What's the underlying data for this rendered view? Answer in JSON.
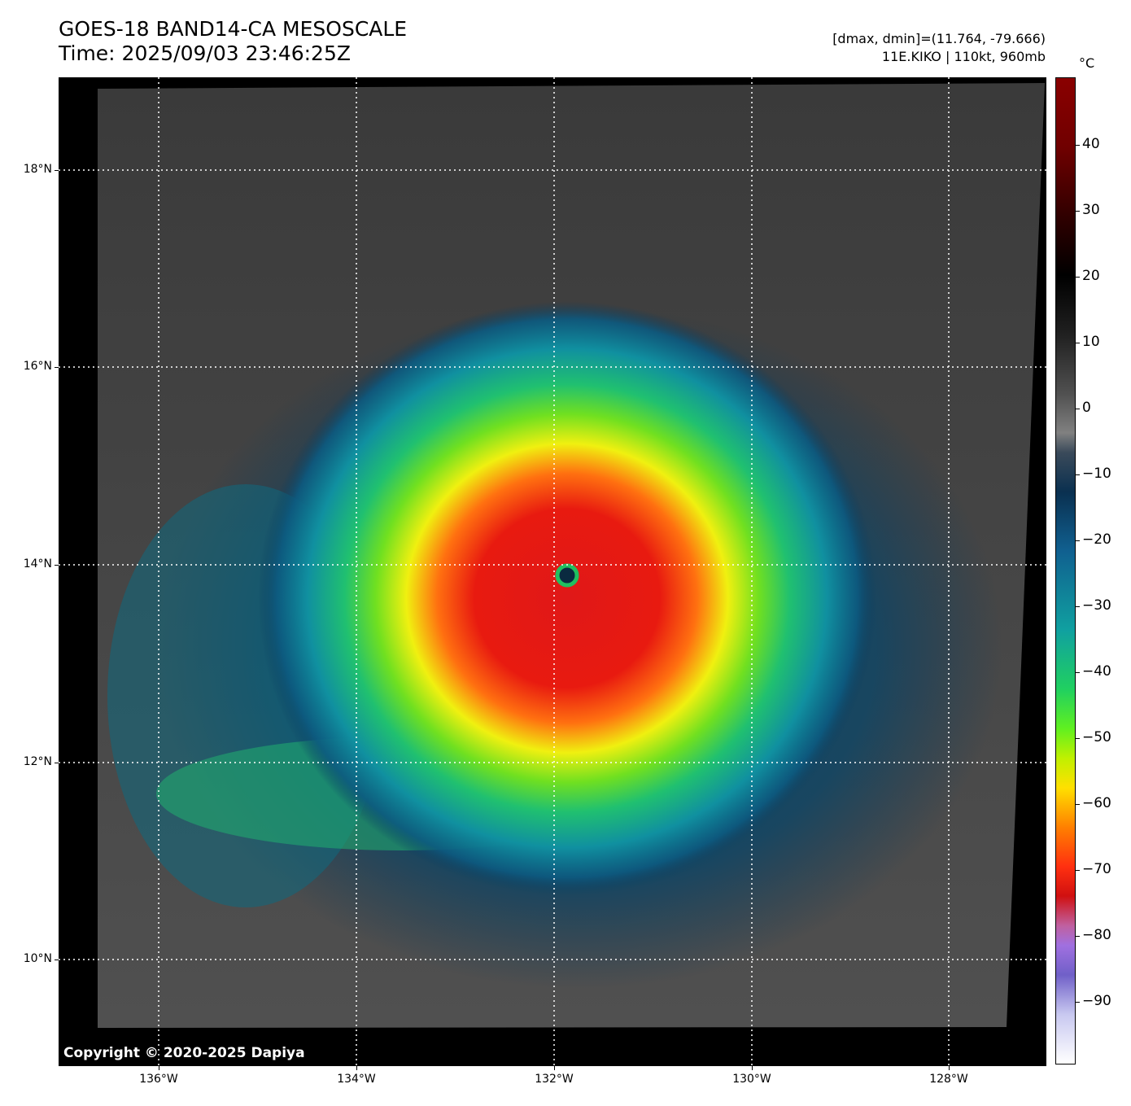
{
  "header": {
    "title_line1": "GOES-18 BAND14-CA MESOSCALE",
    "title_line2": "Time: 2025/09/03 23:46:25Z",
    "stats_line": "[dmax, dmin]=(11.764, -79.666)",
    "storm_line": "11E.KIKO | 110kt, 960mb"
  },
  "map": {
    "copyright": "Copyright © 2020-2025 Dapiya",
    "lat_labels": [
      "18°N",
      "16°N",
      "14°N",
      "12°N",
      "10°N"
    ],
    "lon_labels": [
      "136°W",
      "134°W",
      "132°W",
      "130°W",
      "128°W"
    ],
    "grid_style": "dotted white",
    "colors": {
      "background": "#000000",
      "grid": "#ffffff"
    }
  },
  "colorbar": {
    "unit": "°C",
    "labels": [
      "40",
      "30",
      "20",
      "10",
      "0",
      "−10",
      "−20",
      "−30",
      "−40",
      "−50",
      "−60",
      "−70",
      "−80",
      "−90"
    ]
  }
}
